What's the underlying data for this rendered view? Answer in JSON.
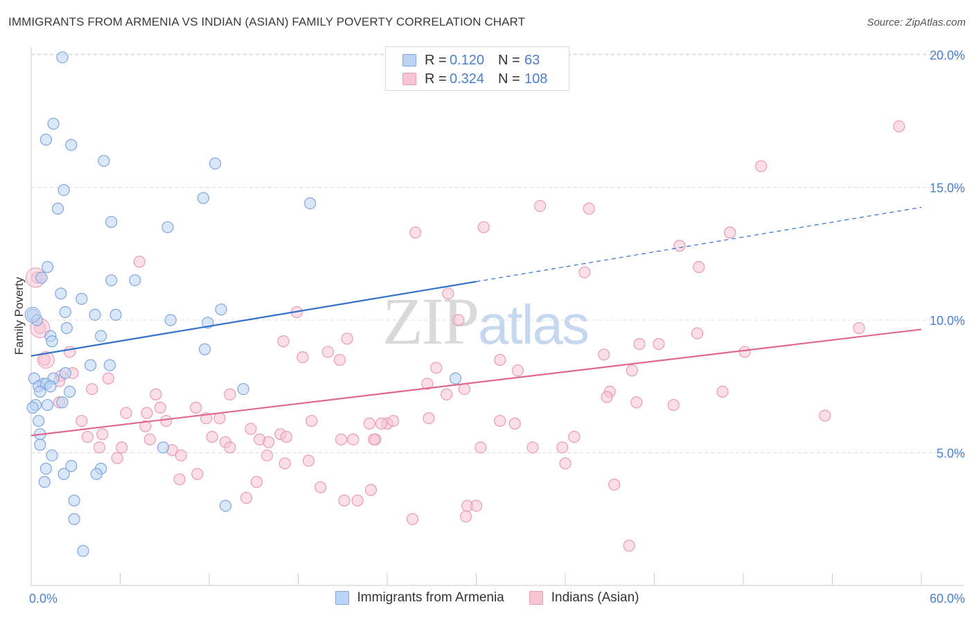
{
  "header": {
    "title": "IMMIGRANTS FROM ARMENIA VS INDIAN (ASIAN) FAMILY POVERTY CORRELATION CHART",
    "source": "Source: ZipAtlas.com"
  },
  "watermark": {
    "zip": "ZIP",
    "atlas": "atlas"
  },
  "legend": {
    "rows": [
      {
        "r_label": "R =",
        "r_value": "0.120",
        "n_label": "N =",
        "n_value": "63"
      },
      {
        "r_label": "R =",
        "r_value": "0.324",
        "n_label": "N =",
        "n_value": "108"
      }
    ]
  },
  "bottom_legend": {
    "items": [
      {
        "label": "Immigrants from Armenia"
      },
      {
        "label": "Indians (Asian)"
      }
    ]
  },
  "colors": {
    "armenia_fill": "#bcd3f3",
    "armenia_stroke": "#7ea6e0",
    "armenia_line": "#2f6fce",
    "indian_fill": "#f7c4d4",
    "indian_stroke": "#e99ab4",
    "indian_line": "#e0688f",
    "grid": "#dcdcdc",
    "axis_text": "#4a7fd0"
  },
  "chart_data": {
    "type": "scatter",
    "title": "IMMIGRANTS FROM ARMENIA VS INDIAN (ASIAN) FAMILY POVERTY CORRELATION CHART",
    "xlabel": "",
    "ylabel": "Family Poverty",
    "xlim": [
      0,
      60
    ],
    "ylim": [
      0,
      20.8
    ],
    "x_tick_labels": [
      "0.0%",
      "60.0%"
    ],
    "y_ticks": [
      5,
      10,
      15,
      20
    ],
    "y_tick_labels": [
      "5.0%",
      "10.0%",
      "15.0%",
      "20.0%"
    ],
    "series": [
      {
        "name": "Immigrants from Armenia",
        "r": 0.12,
        "n": 63,
        "trend": {
          "x0": 0,
          "y0": 8.65,
          "x1": 30,
          "y1": 11.45,
          "dash_to_x": 60,
          "dash_to_y": 14.25
        },
        "points": [
          [
            2.1,
            19.9
          ],
          [
            1.5,
            17.4
          ],
          [
            1.0,
            16.8
          ],
          [
            2.7,
            16.6
          ],
          [
            4.9,
            16.0
          ],
          [
            12.4,
            15.9
          ],
          [
            2.2,
            14.9
          ],
          [
            11.6,
            14.6
          ],
          [
            1.8,
            14.2
          ],
          [
            18.8,
            14.4
          ],
          [
            5.4,
            13.7
          ],
          [
            9.2,
            13.5
          ],
          [
            1.1,
            12.0
          ],
          [
            0.7,
            11.6
          ],
          [
            5.4,
            11.5
          ],
          [
            7.0,
            11.5
          ],
          [
            2.0,
            11.0
          ],
          [
            3.4,
            10.8
          ],
          [
            0.1,
            10.2
          ],
          [
            12.8,
            10.4
          ],
          [
            2.3,
            10.3
          ],
          [
            4.3,
            10.2
          ],
          [
            5.7,
            10.2
          ],
          [
            0.4,
            10.0
          ],
          [
            9.4,
            10.0
          ],
          [
            11.9,
            9.9
          ],
          [
            2.4,
            9.7
          ],
          [
            1.3,
            9.4
          ],
          [
            1.4,
            9.2
          ],
          [
            4.7,
            9.4
          ],
          [
            11.7,
            8.9
          ],
          [
            4.0,
            8.3
          ],
          [
            5.3,
            8.3
          ],
          [
            2.3,
            8.0
          ],
          [
            1.5,
            7.8
          ],
          [
            0.2,
            7.8
          ],
          [
            0.8,
            7.6
          ],
          [
            0.5,
            7.5
          ],
          [
            1.0,
            7.6
          ],
          [
            28.6,
            7.8
          ],
          [
            0.6,
            7.3
          ],
          [
            1.3,
            7.5
          ],
          [
            14.3,
            7.4
          ],
          [
            2.6,
            7.3
          ],
          [
            0.3,
            6.8
          ],
          [
            2.1,
            6.9
          ],
          [
            1.1,
            6.8
          ],
          [
            0.1,
            6.7
          ],
          [
            0.5,
            6.2
          ],
          [
            0.6,
            5.7
          ],
          [
            0.6,
            5.3
          ],
          [
            8.9,
            5.2
          ],
          [
            1.4,
            4.9
          ],
          [
            2.7,
            4.5
          ],
          [
            4.7,
            4.4
          ],
          [
            1.0,
            4.4
          ],
          [
            2.2,
            4.2
          ],
          [
            4.4,
            4.2
          ],
          [
            0.9,
            3.9
          ],
          [
            2.9,
            3.2
          ],
          [
            13.1,
            3.0
          ],
          [
            2.9,
            2.5
          ],
          [
            3.5,
            1.3
          ]
        ]
      },
      {
        "name": "Indians (Asian)",
        "r": 0.324,
        "n": 108,
        "trend": {
          "x0": 0,
          "y0": 5.65,
          "x1": 60,
          "y1": 9.65
        },
        "points": [
          [
            58.5,
            17.3
          ],
          [
            49.2,
            15.8
          ],
          [
            34.3,
            14.3
          ],
          [
            37.6,
            14.2
          ],
          [
            30.5,
            13.5
          ],
          [
            25.9,
            13.3
          ],
          [
            47.1,
            13.3
          ],
          [
            43.7,
            12.8
          ],
          [
            7.3,
            12.2
          ],
          [
            45.0,
            12.0
          ],
          [
            37.3,
            11.8
          ],
          [
            0.4,
            11.6
          ],
          [
            28.1,
            11.0
          ],
          [
            17.9,
            10.3
          ],
          [
            28.8,
            10.0
          ],
          [
            0.6,
            9.7
          ],
          [
            55.8,
            9.7
          ],
          [
            44.9,
            9.5
          ],
          [
            21.3,
            9.3
          ],
          [
            17.0,
            9.2
          ],
          [
            42.3,
            9.1
          ],
          [
            41.0,
            9.1
          ],
          [
            2.6,
            8.8
          ],
          [
            20.0,
            8.8
          ],
          [
            48.1,
            8.8
          ],
          [
            38.6,
            8.7
          ],
          [
            18.3,
            8.6
          ],
          [
            20.8,
            8.5
          ],
          [
            0.9,
            8.5
          ],
          [
            31.6,
            8.5
          ],
          [
            27.3,
            8.2
          ],
          [
            32.8,
            8.1
          ],
          [
            40.5,
            8.1
          ],
          [
            2.0,
            7.9
          ],
          [
            2.8,
            8.0
          ],
          [
            1.9,
            7.7
          ],
          [
            5.2,
            7.8
          ],
          [
            26.7,
            7.6
          ],
          [
            29.2,
            7.4
          ],
          [
            4.1,
            7.4
          ],
          [
            39.0,
            7.3
          ],
          [
            8.4,
            7.2
          ],
          [
            13.4,
            7.2
          ],
          [
            38.8,
            7.1
          ],
          [
            28.0,
            7.2
          ],
          [
            46.6,
            7.3
          ],
          [
            1.9,
            6.9
          ],
          [
            40.8,
            6.9
          ],
          [
            43.3,
            6.8
          ],
          [
            8.7,
            6.7
          ],
          [
            11.1,
            6.7
          ],
          [
            6.4,
            6.5
          ],
          [
            7.8,
            6.5
          ],
          [
            53.5,
            6.4
          ],
          [
            11.8,
            6.3
          ],
          [
            12.7,
            6.3
          ],
          [
            26.8,
            6.3
          ],
          [
            18.9,
            6.2
          ],
          [
            9.1,
            6.2
          ],
          [
            3.4,
            6.2
          ],
          [
            22.8,
            6.1
          ],
          [
            24.0,
            6.1
          ],
          [
            24.4,
            6.2
          ],
          [
            23.6,
            6.1
          ],
          [
            31.6,
            6.2
          ],
          [
            32.6,
            6.1
          ],
          [
            7.7,
            6.0
          ],
          [
            14.8,
            5.9
          ],
          [
            4.8,
            5.7
          ],
          [
            3.8,
            5.6
          ],
          [
            16.8,
            5.7
          ],
          [
            17.2,
            5.6
          ],
          [
            12.2,
            5.6
          ],
          [
            15.4,
            5.5
          ],
          [
            13.1,
            5.4
          ],
          [
            8.0,
            5.5
          ],
          [
            20.9,
            5.5
          ],
          [
            21.7,
            5.5
          ],
          [
            23.2,
            5.5
          ],
          [
            23.1,
            5.5
          ],
          [
            36.6,
            5.6
          ],
          [
            13.4,
            5.2
          ],
          [
            6.1,
            5.2
          ],
          [
            4.6,
            5.2
          ],
          [
            30.3,
            5.2
          ],
          [
            33.8,
            5.2
          ],
          [
            35.8,
            5.2
          ],
          [
            9.5,
            5.1
          ],
          [
            16.0,
            5.4
          ],
          [
            10.1,
            4.9
          ],
          [
            15.9,
            4.9
          ],
          [
            5.8,
            4.8
          ],
          [
            18.7,
            4.7
          ],
          [
            17.1,
            4.6
          ],
          [
            36.0,
            4.6
          ],
          [
            11.2,
            4.2
          ],
          [
            10.0,
            4.0
          ],
          [
            15.2,
            3.9
          ],
          [
            19.5,
            3.7
          ],
          [
            39.3,
            3.8
          ],
          [
            22.9,
            3.6
          ],
          [
            14.5,
            3.3
          ],
          [
            22.0,
            3.2
          ],
          [
            21.1,
            3.2
          ],
          [
            29.4,
            3.0
          ],
          [
            30.0,
            3.0
          ],
          [
            29.3,
            2.6
          ],
          [
            25.7,
            2.5
          ],
          [
            40.3,
            1.5
          ]
        ]
      }
    ]
  }
}
